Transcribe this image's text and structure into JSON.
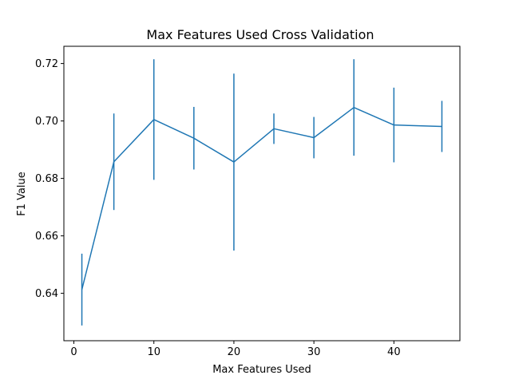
{
  "chart_data": {
    "type": "line",
    "title": "Max Features Used Cross Validation",
    "xlabel": "Max Features Used",
    "ylabel": "F1 Value",
    "xlim": [
      -1.25,
      48.25
    ],
    "ylim": [
      0.6235,
      0.726
    ],
    "xticks": [
      0,
      10,
      20,
      30,
      40
    ],
    "yticks": [
      0.64,
      0.66,
      0.68,
      0.7,
      0.72
    ],
    "ytick_labels": [
      "0.64",
      "0.66",
      "0.68",
      "0.70",
      "0.72"
    ],
    "grid": false,
    "series": [
      {
        "color": "#1f77b4",
        "x": [
          1,
          5,
          10,
          15,
          20,
          25,
          30,
          35,
          40,
          46
        ],
        "y": [
          0.6413,
          0.6858,
          0.7005,
          0.694,
          0.6857,
          0.6973,
          0.6942,
          0.7047,
          0.6986,
          0.6981
        ],
        "err": [
          0.0125,
          0.0168,
          0.021,
          0.0109,
          0.0308,
          0.0053,
          0.0072,
          0.0168,
          0.013,
          0.0089
        ]
      }
    ]
  }
}
